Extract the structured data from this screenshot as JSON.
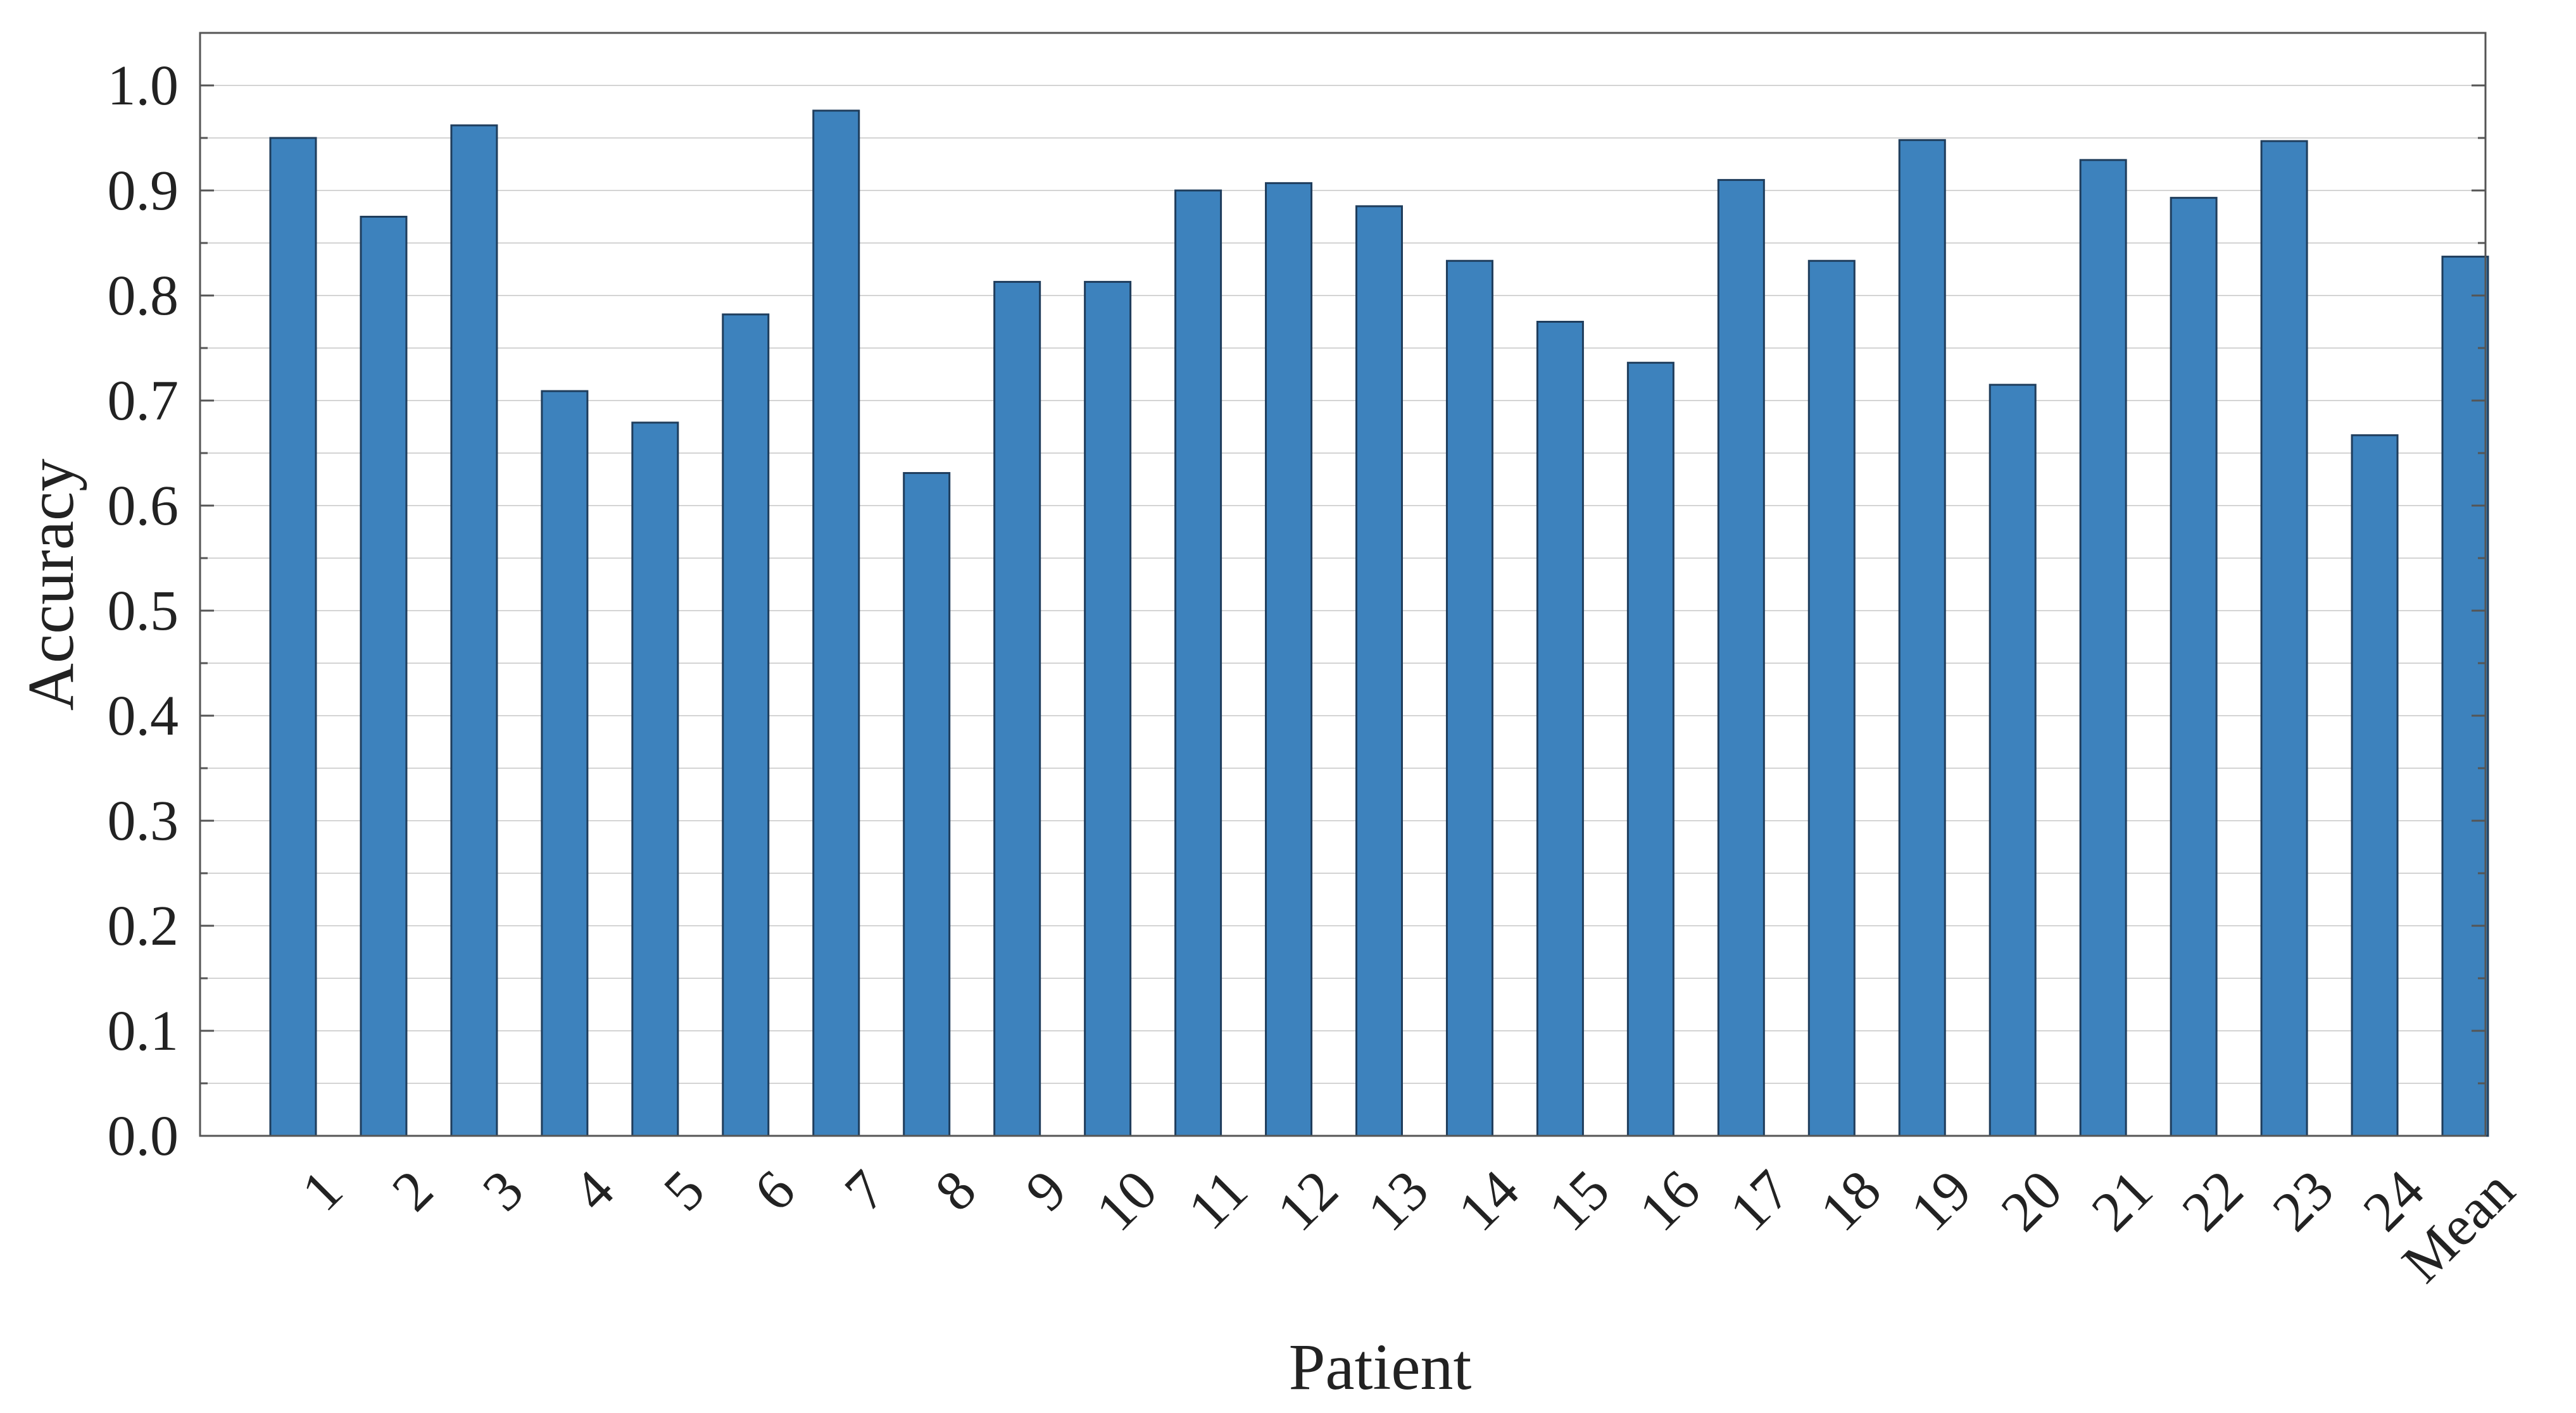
{
  "chart_data": {
    "type": "bar",
    "xlabel": "Patient",
    "ylabel": "Accuracy",
    "categories": [
      "1",
      "2",
      "3",
      "4",
      "5",
      "6",
      "7",
      "8",
      "9",
      "10",
      "11",
      "12",
      "13",
      "14",
      "15",
      "16",
      "17",
      "18",
      "19",
      "20",
      "21",
      "22",
      "23",
      "24",
      "Mean"
    ],
    "values": [
      0.95,
      0.875,
      0.962,
      0.709,
      0.679,
      0.782,
      0.976,
      0.631,
      0.813,
      0.813,
      0.9,
      0.907,
      0.885,
      0.833,
      0.775,
      0.736,
      0.91,
      0.833,
      0.948,
      0.715,
      0.929,
      0.893,
      0.947,
      0.667,
      0.837
    ],
    "ylim": [
      0.0,
      1.05
    ],
    "yticks": [
      "0.0",
      "0.1",
      "0.2",
      "0.3",
      "0.4",
      "0.5",
      "0.6",
      "0.7",
      "0.8",
      "0.9",
      "1.0"
    ],
    "grid": true,
    "bar_color": "#3d82bd",
    "bar_edge_color": "#1f3d5c",
    "grid_color": "#d4d4d4"
  }
}
